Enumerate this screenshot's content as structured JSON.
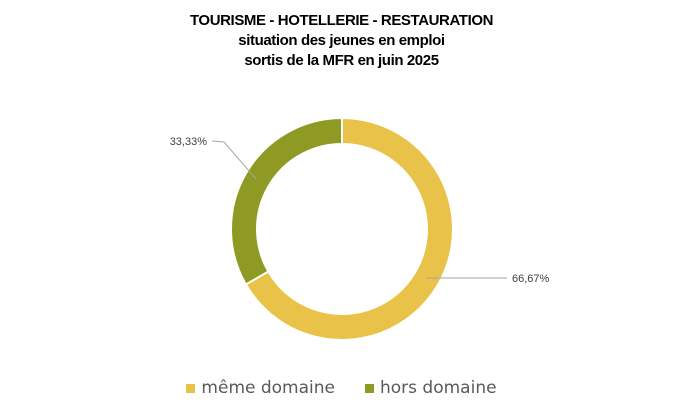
{
  "chart_data": {
    "type": "pie",
    "variant": "donut",
    "title": [
      "TOURISME - HOTELLERIE - RESTAURATION",
      "situation des jeunes en emploi",
      "sortis de la MFR en juin 2025"
    ],
    "categories": [
      "même domaine",
      "hors domaine"
    ],
    "values": [
      66.67,
      33.33
    ],
    "labels": [
      "66,67%",
      "33,33%"
    ],
    "colors": [
      "#E9C349",
      "#8F9A24"
    ],
    "legend_position": "bottom"
  }
}
